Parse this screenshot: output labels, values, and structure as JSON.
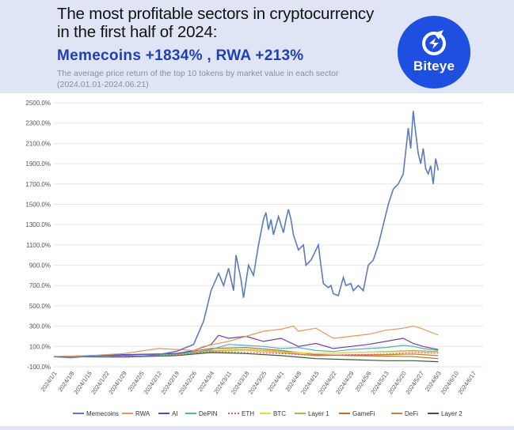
{
  "header": {
    "title": "The most profitable sectors in cryptocurrency in the first half of 2024:",
    "headline": "Memecoins +1834% , RWA +213%",
    "subtitle": "The average price return of the top 10 tokens by market value in each sector (2024.01.01-2024.06.21)",
    "logo_text": "Biteye"
  },
  "colors": {
    "brand": "#1e4fe0",
    "headline": "#1f3fb8",
    "Memecoins": "#5b7bc0",
    "RWA": "#e8965a",
    "AI": "#6f3fa3",
    "DePIN": "#4fb3b8",
    "ETH": "#e0508a",
    "BTC": "#f2d24a",
    "Layer 1": "#9cc04a",
    "GameFi": "#c46a2a",
    "DeFi": "#b88a30",
    "Layer 2": "#3a5a30"
  },
  "chart_data": {
    "type": "line",
    "xlabel": "",
    "ylabel": "",
    "ylim": [
      -100,
      2500
    ],
    "y_ticks": [
      "-100.0%",
      "100.0%",
      "300.0%",
      "500.0%",
      "700.0%",
      "900.0%",
      "1100.0%",
      "1300.0%",
      "1500.0%",
      "1700.0%",
      "1900.0%",
      "2100.0%",
      "2300.0%",
      "2500.0%"
    ],
    "x_ticks": [
      "2024/1/1",
      "2024/1/8",
      "2024/1/15",
      "2024/1/22",
      "2024/1/29",
      "2024/2/5",
      "2024/2/12",
      "2024/2/19",
      "2024/2/26",
      "2024/3/4",
      "2024/3/11",
      "2024/3/18",
      "2024/3/25",
      "2024/4/1",
      "2024/4/8",
      "2024/4/15",
      "2024/4/22",
      "2024/4/29",
      "2024/5/6",
      "2024/5/13",
      "2024/5/20",
      "2024/5/27",
      "2024/6/3",
      "2024/6/10",
      "2024/6/17"
    ],
    "grid": true,
    "legend_position": "bottom",
    "series": [
      {
        "name": "Memecoins",
        "points": [
          [
            0,
            0
          ],
          [
            7,
            -10
          ],
          [
            14,
            5
          ],
          [
            21,
            0
          ],
          [
            28,
            10
          ],
          [
            35,
            0
          ],
          [
            42,
            20
          ],
          [
            49,
            50
          ],
          [
            56,
            120
          ],
          [
            60,
            350
          ],
          [
            63,
            650
          ],
          [
            66,
            820
          ],
          [
            68,
            700
          ],
          [
            70,
            870
          ],
          [
            72,
            650
          ],
          [
            73,
            1000
          ],
          [
            75,
            760
          ],
          [
            76,
            580
          ],
          [
            78,
            900
          ],
          [
            80,
            800
          ],
          [
            82,
            1100
          ],
          [
            84,
            1350
          ],
          [
            85,
            1420
          ],
          [
            86,
            1250
          ],
          [
            87,
            1350
          ],
          [
            88,
            1200
          ],
          [
            90,
            1380
          ],
          [
            91,
            1300
          ],
          [
            92,
            1220
          ],
          [
            93,
            1350
          ],
          [
            94,
            1450
          ],
          [
            95,
            1350
          ],
          [
            96,
            1200
          ],
          [
            98,
            1050
          ],
          [
            100,
            1100
          ],
          [
            101,
            900
          ],
          [
            103,
            950
          ],
          [
            105,
            1050
          ],
          [
            106,
            1100
          ],
          [
            107,
            900
          ],
          [
            108,
            720
          ],
          [
            110,
            680
          ],
          [
            111,
            700
          ],
          [
            112,
            620
          ],
          [
            114,
            600
          ],
          [
            116,
            780
          ],
          [
            117,
            700
          ],
          [
            119,
            720
          ],
          [
            120,
            650
          ],
          [
            122,
            700
          ],
          [
            124,
            650
          ],
          [
            126,
            900
          ],
          [
            128,
            950
          ],
          [
            130,
            1100
          ],
          [
            132,
            1300
          ],
          [
            134,
            1500
          ],
          [
            136,
            1650
          ],
          [
            138,
            1700
          ],
          [
            140,
            1800
          ],
          [
            142,
            2250
          ],
          [
            143,
            2050
          ],
          [
            144,
            2420
          ],
          [
            145,
            2200
          ],
          [
            146,
            2000
          ],
          [
            147,
            1900
          ],
          [
            148,
            2050
          ],
          [
            149,
            1850
          ],
          [
            150,
            1800
          ],
          [
            151,
            1880
          ],
          [
            152,
            1700
          ],
          [
            153,
            1950
          ],
          [
            154,
            1834
          ]
        ]
      },
      {
        "name": "RWA",
        "points": [
          [
            0,
            0
          ],
          [
            14,
            10
          ],
          [
            28,
            30
          ],
          [
            42,
            80
          ],
          [
            56,
            60
          ],
          [
            60,
            100
          ],
          [
            70,
            150
          ],
          [
            77,
            200
          ],
          [
            84,
            250
          ],
          [
            91,
            270
          ],
          [
            96,
            300
          ],
          [
            98,
            250
          ],
          [
            105,
            280
          ],
          [
            112,
            180
          ],
          [
            119,
            200
          ],
          [
            126,
            220
          ],
          [
            133,
            260
          ],
          [
            140,
            280
          ],
          [
            144,
            300
          ],
          [
            147,
            280
          ],
          [
            150,
            250
          ],
          [
            154,
            213
          ]
        ]
      },
      {
        "name": "AI",
        "points": [
          [
            0,
            0
          ],
          [
            28,
            20
          ],
          [
            49,
            30
          ],
          [
            56,
            60
          ],
          [
            63,
            120
          ],
          [
            66,
            210
          ],
          [
            70,
            180
          ],
          [
            77,
            200
          ],
          [
            84,
            150
          ],
          [
            91,
            180
          ],
          [
            98,
            100
          ],
          [
            105,
            130
          ],
          [
            112,
            80
          ],
          [
            119,
            100
          ],
          [
            126,
            120
          ],
          [
            133,
            150
          ],
          [
            140,
            180
          ],
          [
            144,
            130
          ],
          [
            148,
            100
          ],
          [
            154,
            70
          ]
        ]
      },
      {
        "name": "DePIN",
        "points": [
          [
            0,
            0
          ],
          [
            28,
            15
          ],
          [
            49,
            25
          ],
          [
            56,
            40
          ],
          [
            63,
            70
          ],
          [
            70,
            120
          ],
          [
            77,
            110
          ],
          [
            84,
            100
          ],
          [
            91,
            80
          ],
          [
            98,
            90
          ],
          [
            105,
            60
          ],
          [
            112,
            50
          ],
          [
            119,
            70
          ],
          [
            126,
            80
          ],
          [
            133,
            90
          ],
          [
            140,
            110
          ],
          [
            144,
            100
          ],
          [
            148,
            80
          ],
          [
            154,
            60
          ]
        ]
      },
      {
        "name": "ETH",
        "points": [
          [
            0,
            0
          ],
          [
            28,
            -5
          ],
          [
            49,
            20
          ],
          [
            63,
            50
          ],
          [
            77,
            40
          ],
          [
            91,
            30
          ],
          [
            105,
            10
          ],
          [
            119,
            20
          ],
          [
            133,
            25
          ],
          [
            144,
            40
          ],
          [
            154,
            35
          ]
        ]
      },
      {
        "name": "BTC",
        "points": [
          [
            0,
            0
          ],
          [
            28,
            5
          ],
          [
            49,
            20
          ],
          [
            63,
            50
          ],
          [
            77,
            60
          ],
          [
            91,
            45
          ],
          [
            105,
            30
          ],
          [
            119,
            40
          ],
          [
            133,
            45
          ],
          [
            144,
            50
          ],
          [
            154,
            40
          ]
        ]
      },
      {
        "name": "Layer 1",
        "points": [
          [
            0,
            0
          ],
          [
            28,
            5
          ],
          [
            49,
            30
          ],
          [
            63,
            60
          ],
          [
            77,
            70
          ],
          [
            91,
            50
          ],
          [
            105,
            30
          ],
          [
            119,
            40
          ],
          [
            133,
            50
          ],
          [
            144,
            60
          ],
          [
            154,
            50
          ]
        ]
      },
      {
        "name": "GameFi",
        "points": [
          [
            0,
            0
          ],
          [
            28,
            10
          ],
          [
            49,
            30
          ],
          [
            63,
            80
          ],
          [
            77,
            90
          ],
          [
            91,
            60
          ],
          [
            105,
            20
          ],
          [
            119,
            10
          ],
          [
            133,
            5
          ],
          [
            144,
            0
          ],
          [
            154,
            -20
          ]
        ]
      },
      {
        "name": "DeFi",
        "points": [
          [
            0,
            0
          ],
          [
            28,
            5
          ],
          [
            49,
            20
          ],
          [
            63,
            50
          ],
          [
            77,
            60
          ],
          [
            91,
            40
          ],
          [
            105,
            10
          ],
          [
            119,
            15
          ],
          [
            133,
            20
          ],
          [
            144,
            25
          ],
          [
            154,
            10
          ]
        ]
      },
      {
        "name": "Layer 2",
        "points": [
          [
            0,
            0
          ],
          [
            28,
            -5
          ],
          [
            49,
            10
          ],
          [
            63,
            40
          ],
          [
            77,
            30
          ],
          [
            91,
            10
          ],
          [
            105,
            -20
          ],
          [
            119,
            -30
          ],
          [
            133,
            -40
          ],
          [
            144,
            -40
          ],
          [
            154,
            -50
          ]
        ]
      }
    ]
  }
}
